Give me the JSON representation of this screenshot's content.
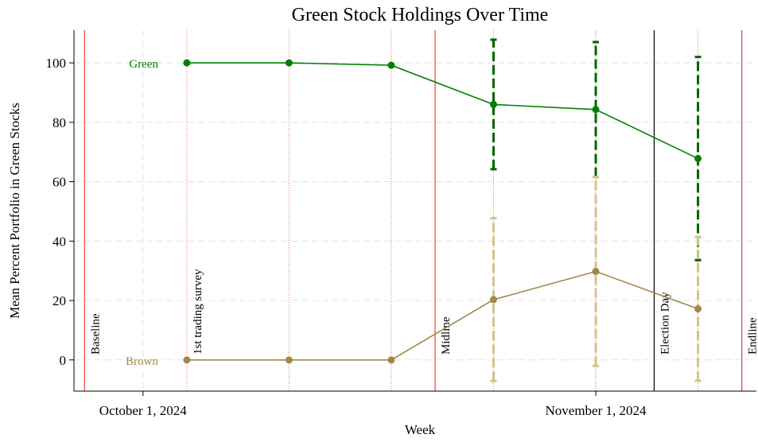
{
  "chart_data": {
    "type": "line",
    "title": "Green Stock Holdings Over Time",
    "x_label": "Week",
    "y_label": "Mean Percent Portfolio in Green Stocks",
    "x": [
      "2024-10-04",
      "2024-10-11",
      "2024-10-18",
      "2024-10-25",
      "2024-11-01",
      "2024-11-08"
    ],
    "series": [
      {
        "name": "Green",
        "color": "#008000",
        "error_color": "#006400",
        "values": [
          100,
          100,
          99.2,
          86,
          84.3,
          67.8
        ],
        "errors": [
          null,
          null,
          null,
          21.8,
          22.7,
          34.2
        ]
      },
      {
        "name": "Brown",
        "color": "#a08848",
        "error_color": "#d2c48a",
        "values": [
          0,
          0,
          0,
          20.3,
          29.8,
          17.2
        ],
        "errors": [
          null,
          null,
          null,
          27.4,
          31.8,
          24.2
        ]
      }
    ],
    "xlim": [
      "2024-09-26",
      "2024-11-12"
    ],
    "xticks": [
      {
        "value": "2024-10-01",
        "label": "October 1, 2024"
      },
      {
        "value": "2024-11-01",
        "label": "November 1, 2024"
      }
    ],
    "ylim": [
      -10.5,
      111
    ],
    "yticks": [
      0,
      20,
      40,
      60,
      80,
      100
    ],
    "grid": true,
    "events": [
      {
        "date": "2024-09-27",
        "label": "Baseline",
        "color": "#e8403c"
      },
      {
        "date": "2024-10-04",
        "label": "1st trading survey"
      },
      {
        "date": "2024-10-21",
        "label": "Midline",
        "color": "#e8403c"
      },
      {
        "date": "2024-11-05",
        "label": "Election Day",
        "color": "#000000"
      },
      {
        "date": "2024-11-11",
        "label": "Endline",
        "color": "#e8403c"
      }
    ]
  }
}
